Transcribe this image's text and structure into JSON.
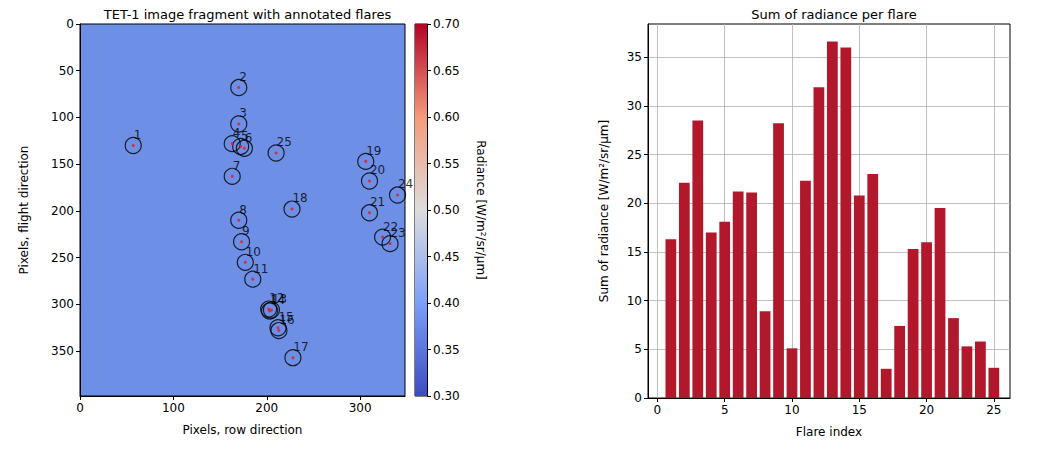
{
  "chart_data": [
    {
      "type": "scatter",
      "title": "TET-1 image fragment with annotated flares",
      "xlabel": "Pixels, row direction",
      "ylabel": "Pixels, flight direction",
      "x": [
        57,
        170,
        170,
        163,
        172,
        176,
        163,
        170,
        173,
        177,
        185,
        202,
        205,
        203,
        212,
        213,
        228,
        227,
        306,
        310,
        310,
        324,
        332,
        340,
        210
      ],
      "y": [
        130,
        68,
        107,
        128,
        131,
        133,
        163,
        210,
        233,
        255,
        273,
        305,
        306,
        307,
        325,
        328,
        357,
        198,
        147,
        168,
        202,
        228,
        235,
        183,
        138
      ],
      "labels": [
        1,
        2,
        3,
        4,
        5,
        6,
        7,
        8,
        9,
        10,
        11,
        12,
        13,
        14,
        15,
        16,
        17,
        18,
        19,
        20,
        21,
        22,
        23,
        24,
        25
      ],
      "marker": "circle",
      "xlim": [
        0,
        348
      ],
      "ylim": [
        398,
        0
      ],
      "xticks": [
        0,
        100,
        200,
        300
      ],
      "yticks": [
        0,
        50,
        100,
        150,
        200,
        250,
        300,
        350
      ],
      "grid": false,
      "colorbar": {
        "label": "Radiance [W/m²/sr/µm]",
        "range": [
          0.3,
          0.7
        ],
        "ticks": [
          {
            "value": 0.3,
            "label": "0.30"
          },
          {
            "value": 0.35,
            "label": "0.35"
          },
          {
            "value": 0.4,
            "label": "0.40"
          },
          {
            "value": 0.45,
            "label": "0.45"
          },
          {
            "value": 0.5,
            "label": "0.50"
          },
          {
            "value": 0.55,
            "label": "0.55"
          },
          {
            "value": 0.6,
            "label": "0.60"
          },
          {
            "value": 0.65,
            "label": "0.65"
          },
          {
            "value": 0.7,
            "label": "0.70"
          }
        ]
      }
    },
    {
      "type": "bar",
      "title": "Sum of radiance per flare",
      "xlabel": "Flare index",
      "ylabel": "Sum of radiance [W/m²/sr/µm]",
      "x": [
        1,
        2,
        3,
        4,
        5,
        6,
        7,
        8,
        9,
        10,
        11,
        12,
        13,
        14,
        15,
        16,
        17,
        18,
        19,
        20,
        21,
        22,
        23,
        24,
        25
      ],
      "values": [
        16.3,
        22.1,
        28.5,
        17.0,
        18.1,
        21.2,
        21.1,
        8.9,
        28.2,
        5.1,
        22.3,
        31.9,
        36.6,
        36.0,
        20.8,
        23.0,
        3.0,
        7.4,
        15.3,
        16.0,
        19.5,
        8.2,
        5.3,
        5.8,
        3.1
      ],
      "color": "#b2182b",
      "xlim": [
        -0.7,
        26.2
      ],
      "ylim": [
        0,
        38.4
      ],
      "xticks": [
        0,
        5,
        10,
        15,
        20,
        25
      ],
      "yticks": [
        0,
        5,
        10,
        15,
        20,
        25,
        30,
        35
      ],
      "grid": true
    }
  ]
}
